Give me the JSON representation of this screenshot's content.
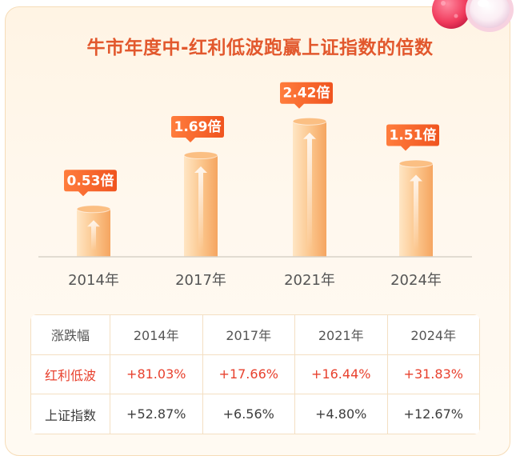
{
  "title": "牛市年度中-红利低波跑赢上证指数的倍数",
  "chart_data": {
    "type": "bar",
    "title": "牛市年度中-红利低波跑赢上证指数的倍数",
    "categories": [
      "2014年",
      "2017年",
      "2021年",
      "2024年"
    ],
    "values": [
      0.53,
      1.69,
      2.42,
      1.51
    ],
    "value_labels": [
      "0.53倍",
      "1.69倍",
      "2.42倍",
      "1.51倍"
    ],
    "ylim": [
      -0.5,
      2.45
    ],
    "grid": false,
    "legend": "none"
  },
  "table": {
    "header": [
      "涨跌幅",
      "2014年",
      "2017年",
      "2021年",
      "2024年"
    ],
    "rows": [
      {
        "label": "红利低波",
        "values": [
          "+81.03%",
          "+17.66%",
          "+16.44%",
          "+31.83%"
        ],
        "highlight": true
      },
      {
        "label": "上证指数",
        "values": [
          "+52.87%",
          "+6.56%",
          "+4.80%",
          "+12.67%"
        ],
        "highlight": false
      }
    ]
  },
  "colors": {
    "title": "#e2582d",
    "bar_light": "#ffe6c4",
    "bar_dark": "#f6a55d",
    "bar_top": "#fbbf83",
    "badge_start": "#ff7d3d",
    "badge_end": "#f0541f",
    "highlight_text": "#e8412e"
  }
}
